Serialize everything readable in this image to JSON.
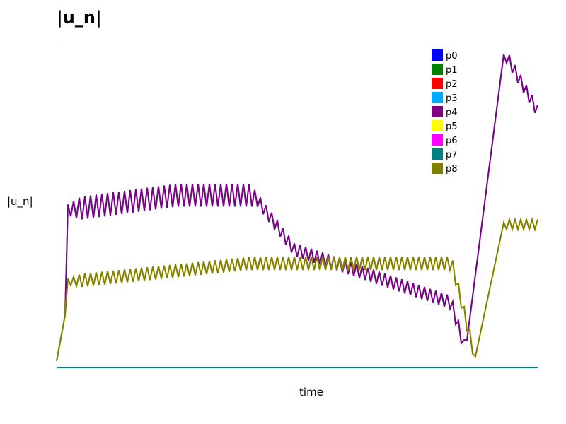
{
  "chart_data": {
    "type": "line",
    "title": "|u_n|",
    "xlabel": "time",
    "ylabel": "|u_n|",
    "xlim": [
      0,
      1
    ],
    "ylim": [
      0,
      1
    ],
    "legend_position": "top-right",
    "grid": false,
    "series": [
      {
        "name": "p0",
        "color": "#0000ff",
        "values": []
      },
      {
        "name": "p1",
        "color": "#008000",
        "values": []
      },
      {
        "name": "p2",
        "color": "#ff0000",
        "values": []
      },
      {
        "name": "p3",
        "color": "#00aaff",
        "values": []
      },
      {
        "name": "p4",
        "color": "#800080",
        "values": []
      },
      {
        "name": "p5",
        "color": "#ffff00",
        "values": []
      },
      {
        "name": "p6",
        "color": "#ff00ff",
        "values": []
      },
      {
        "name": "p7",
        "color": "#008080",
        "values": []
      },
      {
        "name": "p8",
        "color": "#808000",
        "values": []
      }
    ]
  }
}
